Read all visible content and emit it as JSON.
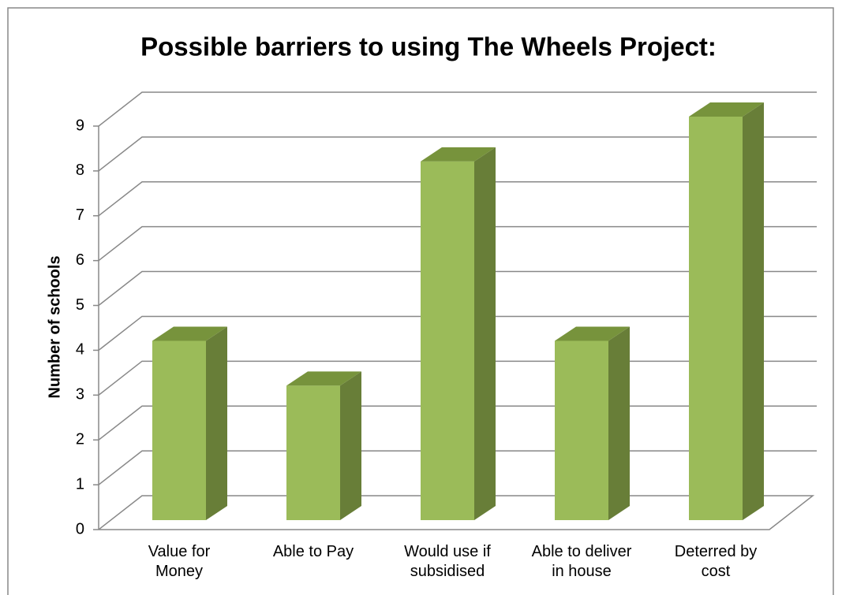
{
  "chart_data": {
    "type": "bar3d",
    "title": "Possible barriers to using The Wheels Project:",
    "y_label": "Number of schools",
    "categories": [
      "Value for\nMoney",
      "Able to Pay",
      "Would use if\nsubsidised",
      "Able to deliver\nin house",
      "Deterred by\ncost"
    ],
    "values": [
      4,
      3,
      8,
      4,
      9
    ],
    "color": "#9bbb59",
    "side_color": "#687e38",
    "top_color": "#77933c",
    "ylim": [
      0,
      9
    ],
    "yticks": [
      0,
      1,
      2,
      3,
      4,
      5,
      6,
      7,
      8,
      9
    ],
    "grid": true
  }
}
